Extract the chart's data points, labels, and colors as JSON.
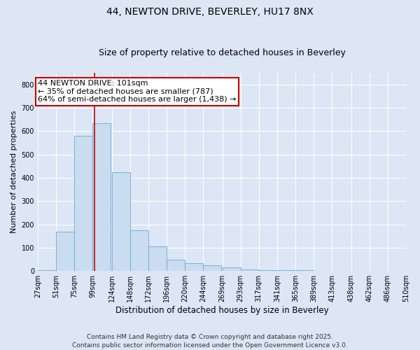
{
  "title1": "44, NEWTON DRIVE, BEVERLEY, HU17 8NX",
  "title2": "Size of property relative to detached houses in Beverley",
  "xlabel": "Distribution of detached houses by size in Beverley",
  "ylabel": "Number of detached properties",
  "bins": [
    27,
    51,
    75,
    99,
    124,
    148,
    172,
    196,
    220,
    244,
    269,
    293,
    317,
    341,
    365,
    389,
    413,
    438,
    462,
    486,
    510
  ],
  "bar_heights": [
    5,
    170,
    580,
    635,
    425,
    175,
    105,
    50,
    35,
    25,
    15,
    8,
    5,
    5,
    3,
    2,
    2,
    2,
    1,
    1
  ],
  "bar_color": "#c9dcf0",
  "bar_edge_color": "#6aaad4",
  "property_line_x": 101,
  "annotation_text": "44 NEWTON DRIVE: 101sqm\n← 35% of detached houses are smaller (787)\n64% of semi-detached houses are larger (1,438) →",
  "annotation_box_color": "#ffffff",
  "annotation_border_color": "#cc0000",
  "vline_color": "#cc0000",
  "ylim": [
    0,
    850
  ],
  "yticks": [
    0,
    100,
    200,
    300,
    400,
    500,
    600,
    700,
    800
  ],
  "tick_labels": [
    "27sqm",
    "51sqm",
    "75sqm",
    "99sqm",
    "124sqm",
    "148sqm",
    "172sqm",
    "196sqm",
    "220sqm",
    "244sqm",
    "269sqm",
    "293sqm",
    "317sqm",
    "341sqm",
    "365sqm",
    "389sqm",
    "413sqm",
    "438sqm",
    "462sqm",
    "486sqm",
    "510sqm"
  ],
  "bg_color": "#dce6f5",
  "plot_bg_color": "#dce6f5",
  "grid_color": "#ffffff",
  "footer": "Contains HM Land Registry data © Crown copyright and database right 2025.\nContains public sector information licensed under the Open Government Licence v3.0.",
  "title1_fontsize": 10,
  "title2_fontsize": 9,
  "xlabel_fontsize": 8.5,
  "ylabel_fontsize": 8,
  "annot_fontsize": 8,
  "footer_fontsize": 6.5,
  "tick_fontsize": 7
}
